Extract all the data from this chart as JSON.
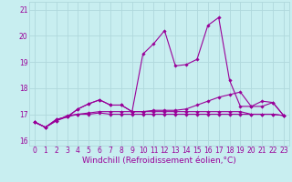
{
  "xlabel": "Windchill (Refroidissement éolien,°C)",
  "ylabel": "",
  "bg_color": "#c8eef0",
  "grid_color": "#b0d8dc",
  "line_color": "#990099",
  "xlim": [
    -0.5,
    23.5
  ],
  "ylim": [
    15.8,
    21.3
  ],
  "xticks": [
    0,
    1,
    2,
    3,
    4,
    5,
    6,
    7,
    8,
    9,
    10,
    11,
    12,
    13,
    14,
    15,
    16,
    17,
    18,
    19,
    20,
    21,
    22,
    23
  ],
  "yticks": [
    16,
    17,
    18,
    19,
    20,
    21
  ],
  "series": [
    [
      16.7,
      16.5,
      16.8,
      16.9,
      17.2,
      17.4,
      17.55,
      17.35,
      17.35,
      17.1,
      19.3,
      19.7,
      20.2,
      18.85,
      18.9,
      19.1,
      20.4,
      20.7,
      18.3,
      17.3,
      17.3,
      17.5,
      17.45,
      16.95
    ],
    [
      16.7,
      16.5,
      16.8,
      16.9,
      17.2,
      17.4,
      17.55,
      17.35,
      17.35,
      17.1,
      17.1,
      17.15,
      17.15,
      17.15,
      17.2,
      17.35,
      17.5,
      17.65,
      17.75,
      17.85,
      17.3,
      17.3,
      17.45,
      16.95
    ],
    [
      16.7,
      16.5,
      16.75,
      16.95,
      17.0,
      17.05,
      17.1,
      17.1,
      17.1,
      17.1,
      17.1,
      17.1,
      17.1,
      17.1,
      17.1,
      17.1,
      17.1,
      17.1,
      17.1,
      17.1,
      17.0,
      17.0,
      17.0,
      16.95
    ],
    [
      16.7,
      16.5,
      16.75,
      16.9,
      17.0,
      17.0,
      17.05,
      17.0,
      17.0,
      17.0,
      17.0,
      17.0,
      17.0,
      17.0,
      17.0,
      17.0,
      17.0,
      17.0,
      17.0,
      17.0,
      17.0,
      17.0,
      17.0,
      16.95
    ]
  ],
  "marker": "D",
  "markersize": 1.8,
  "linewidth": 0.8,
  "xlabel_fontsize": 6.5,
  "tick_fontsize": 5.5
}
